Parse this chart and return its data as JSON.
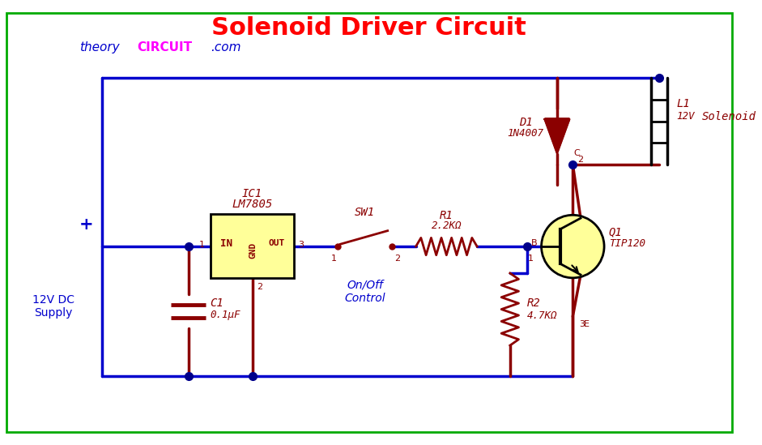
{
  "title": "Solenoid Driver Circuit",
  "title_color": "#FF0000",
  "title_fontsize": 22,
  "bg_color": "#FFFFFF",
  "wire_color": "#0000CD",
  "component_color": "#8B0000",
  "label_color": "#8B0000",
  "border_color": "#00AA00",
  "ic_fill": "#FFFF99",
  "transistor_fill": "#FFFF99",
  "supply_label": "12V DC\nSupply",
  "supply_color": "#0000CD",
  "plus_color": "#0000CD",
  "note_sw": "On/Off\nControl",
  "note_sw_color": "#0000CD",
  "theory_color": "#0000CD",
  "circuit_color": "#FF00FF"
}
